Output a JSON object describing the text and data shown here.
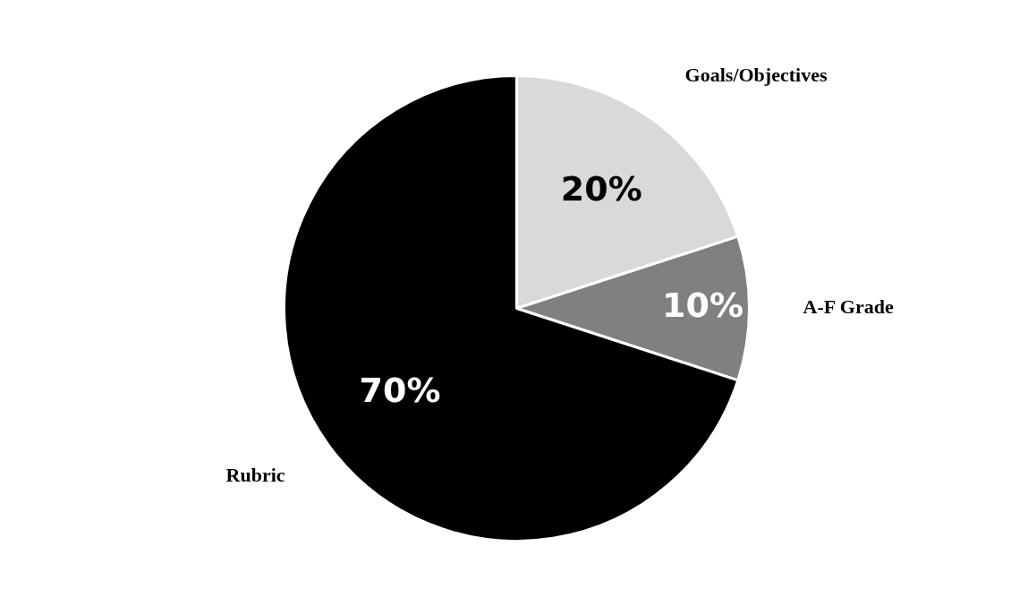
{
  "chart_data": {
    "type": "pie",
    "categories": [
      "Goals/Objectives",
      "A-F Grade",
      "Rubric"
    ],
    "values": [
      20,
      10,
      70
    ],
    "colors": [
      "#d9d9d9",
      "#808080",
      "#000000"
    ],
    "value_labels": [
      "20%",
      "10%",
      "70%"
    ],
    "legend": false
  }
}
